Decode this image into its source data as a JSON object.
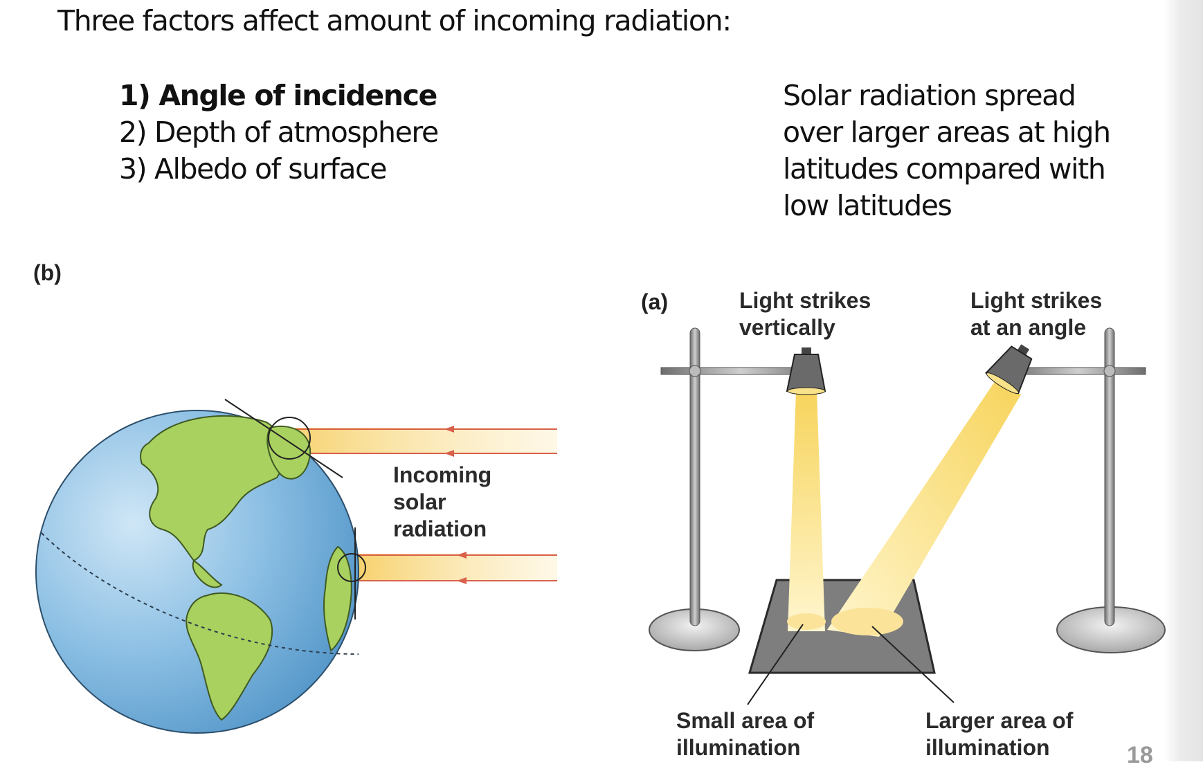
{
  "heading": "Three factors affect amount of incoming radiation:",
  "factors": [
    "1) Angle of incidence",
    "2) Depth of atmosphere",
    "3) Albedo of surface"
  ],
  "note_lines": [
    "Solar radiation spread",
    "over larger areas at high",
    "latitudes compared with",
    "low latitudes"
  ],
  "figure_b": {
    "label": "(b)",
    "incoming_lines": [
      "Incoming",
      "solar",
      "radiation"
    ]
  },
  "figure_a": {
    "label": "(a)",
    "vertical_lines": [
      "Light strikes",
      "vertically"
    ],
    "angle_lines": [
      "Light strikes",
      "at an angle"
    ],
    "small_area_lines": [
      "Small area of",
      "illumination"
    ],
    "large_area_lines": [
      "Larger area of",
      "illumination"
    ]
  },
  "page_number": "18",
  "colors": {
    "ocean": "#7fb6dd",
    "land": "#a9d160",
    "beam": "#f7d66a",
    "arrow": "#d9604a",
    "stand": "#8a8a8a"
  }
}
